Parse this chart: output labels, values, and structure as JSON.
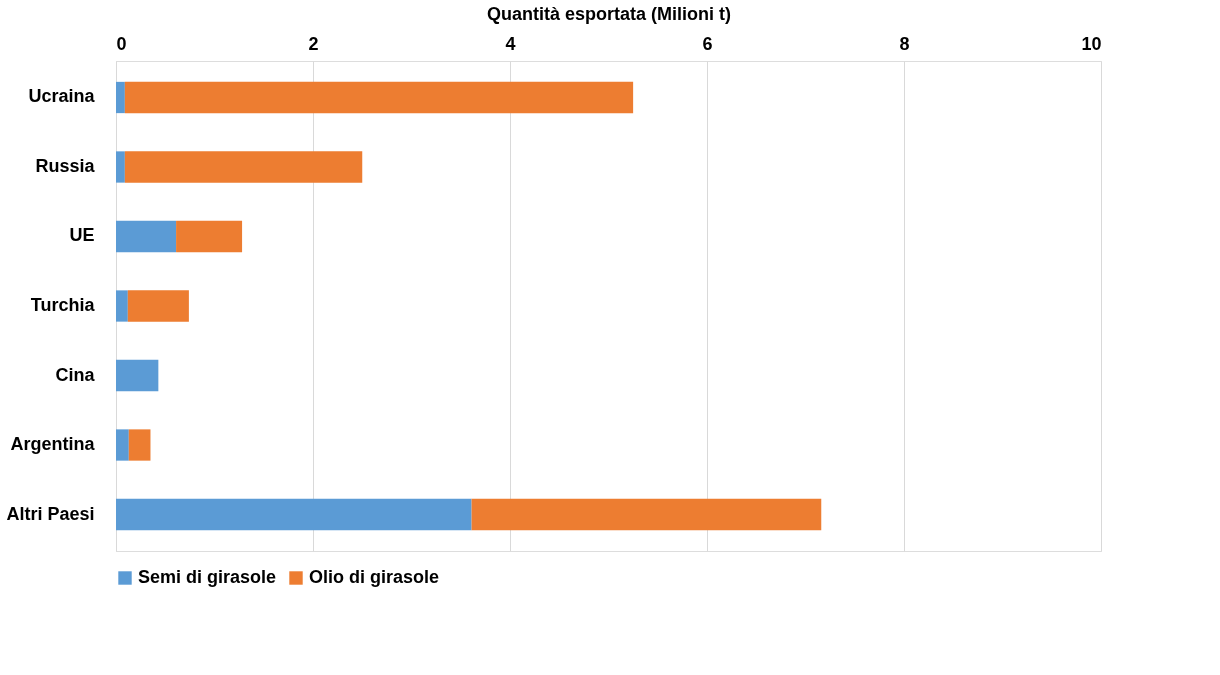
{
  "chart_data": {
    "type": "bar",
    "orientation": "horizontal",
    "stacked": true,
    "xlabel": "Quantità esportata (Milioni t)",
    "categories": [
      "Ucraina",
      "Russia",
      "UE",
      "Turchia",
      "Cina",
      "Argentina",
      "Altri Paesi"
    ],
    "series": [
      {
        "name": "Semi di girasole",
        "color": "#5b9bd5",
        "values": [
          0.09,
          0.09,
          0.61,
          0.12,
          0.43,
          0.13,
          3.61
        ]
      },
      {
        "name": "Olio di girasole",
        "color": "#ed7d31",
        "values": [
          5.16,
          2.41,
          0.67,
          0.62,
          0,
          0.22,
          3.55
        ]
      }
    ],
    "xlim": [
      0,
      10
    ],
    "xticks": [
      0,
      2,
      4,
      6,
      8,
      10
    ],
    "grid": "x",
    "legend": "bottom"
  }
}
